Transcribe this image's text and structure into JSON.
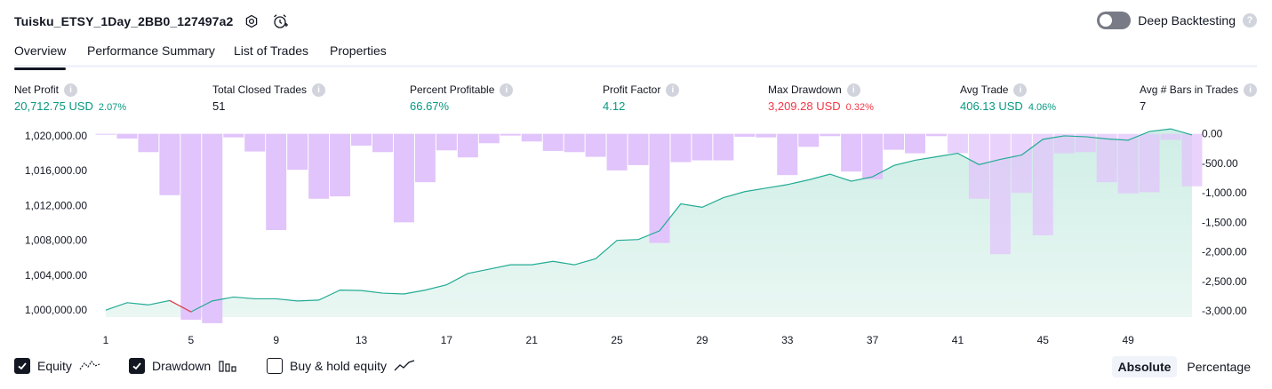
{
  "header": {
    "title": "Tuisku_ETSY_1Day_2BB0_127497a2",
    "deep_backtesting_label": "Deep Backtesting",
    "help_glyph": "?"
  },
  "tabs": [
    "Overview",
    "Performance Summary",
    "List of Trades",
    "Properties"
  ],
  "metrics": [
    {
      "label": "Net Profit",
      "value": "20,712.75 USD",
      "sub": "2.07%",
      "color": "green"
    },
    {
      "label": "Total Closed Trades",
      "value": "51",
      "sub": "",
      "color": "neutral"
    },
    {
      "label": "Percent Profitable",
      "value": "66.67%",
      "sub": "",
      "color": "green"
    },
    {
      "label": "Profit Factor",
      "value": "4.12",
      "sub": "",
      "color": "green"
    },
    {
      "label": "Max Drawdown",
      "value": "3,209.28 USD",
      "sub": "0.32%",
      "color": "red"
    },
    {
      "label": "Avg Trade",
      "value": "406.13 USD",
      "sub": "4.06%",
      "color": "green"
    },
    {
      "label": "Avg # Bars in Trades",
      "value": "7",
      "sub": "",
      "color": "neutral"
    }
  ],
  "info_glyph": "i",
  "legend": {
    "equity": "Equity",
    "drawdown": "Drawdown",
    "buy_hold": "Buy & hold equity",
    "absolute": "Absolute",
    "percentage": "Percentage"
  },
  "colors": {
    "equity_line": "#22ab94",
    "equity_fill": "#cfeee6",
    "drawdown_bar": "#e1c4fb",
    "drawdown_bar_overlap": "#b3bfea",
    "below_start_line": "#f23645",
    "positive": "#089981",
    "negative": "#f23645",
    "axis_text": "#131722"
  },
  "chart_data": {
    "type": "area",
    "x_ticks": [
      1,
      5,
      9,
      13,
      17,
      21,
      25,
      29,
      33,
      37,
      41,
      45,
      49
    ],
    "y_left_ticks": [
      "1,000,000.00",
      "1,004,000.00",
      "1,008,000.00",
      "1,012,000.00",
      "1,016,000.00",
      "1,020,000.00"
    ],
    "y_left_values": [
      1000000,
      1004000,
      1008000,
      1012000,
      1016000,
      1020000
    ],
    "y_right_ticks": [
      "0.00",
      "-500.00",
      "-1,000.00",
      "-1,500.00",
      "-2,000.00",
      "-2,500.00",
      "-3,000.00"
    ],
    "y_right_values": [
      0,
      -500,
      -1000,
      -1500,
      -2000,
      -2500,
      -3000
    ],
    "ylim_left": [
      999100,
      1020300
    ],
    "ylim_right": [
      -3120,
      10
    ],
    "series": [
      {
        "name": "Equity",
        "x": [
          1,
          2,
          3,
          4,
          5,
          6,
          7,
          8,
          9,
          10,
          11,
          12,
          13,
          14,
          15,
          16,
          17,
          18,
          19,
          20,
          21,
          22,
          23,
          24,
          25,
          26,
          27,
          28,
          29,
          30,
          31,
          32,
          33,
          34,
          35,
          36,
          37,
          38,
          39,
          40,
          41,
          42,
          43,
          44,
          45,
          46,
          47,
          48,
          49,
          50,
          51,
          52
        ],
        "values": [
          1000000,
          1000850,
          1000600,
          1001100,
          999800,
          1001050,
          1001500,
          1001300,
          1001300,
          1001050,
          1001150,
          1002300,
          1002250,
          1001950,
          1001850,
          1002300,
          1002900,
          1004200,
          1004700,
          1005200,
          1005200,
          1005600,
          1005200,
          1005900,
          1008000,
          1008100,
          1009100,
          1012200,
          1011800,
          1012900,
          1013600,
          1014000,
          1014400,
          1014950,
          1015600,
          1014800,
          1015300,
          1016600,
          1017200,
          1017600,
          1018000,
          1016700,
          1017300,
          1017800,
          1019600,
          1020000,
          1019900,
          1019650,
          1019500,
          1020500,
          1020800,
          1020100
        ]
      },
      {
        "name": "Drawdown",
        "x": [
          1,
          2,
          3,
          4,
          5,
          6,
          7,
          8,
          9,
          10,
          11,
          12,
          13,
          14,
          15,
          16,
          17,
          18,
          19,
          20,
          21,
          22,
          23,
          24,
          25,
          26,
          27,
          28,
          29,
          30,
          31,
          32,
          33,
          34,
          35,
          36,
          37,
          38,
          39,
          40,
          41,
          42,
          43,
          44,
          45,
          46,
          47,
          48,
          49,
          50,
          51,
          52
        ],
        "values": [
          -10,
          -80,
          -310,
          -1040,
          -3150,
          -3209.28,
          -60,
          -300,
          -1630,
          -610,
          -1100,
          -1060,
          -200,
          -310,
          -1500,
          -820,
          -280,
          -400,
          -160,
          -30,
          -130,
          -290,
          -310,
          -390,
          -620,
          -530,
          -1850,
          -480,
          -450,
          -450,
          -50,
          -60,
          -700,
          -220,
          -40,
          -640,
          -770,
          -270,
          -330,
          -40,
          -330,
          -1100,
          -2040,
          -1000,
          -1720,
          -330,
          -310,
          -820,
          -1010,
          -990,
          -100,
          -890
        ]
      }
    ]
  }
}
